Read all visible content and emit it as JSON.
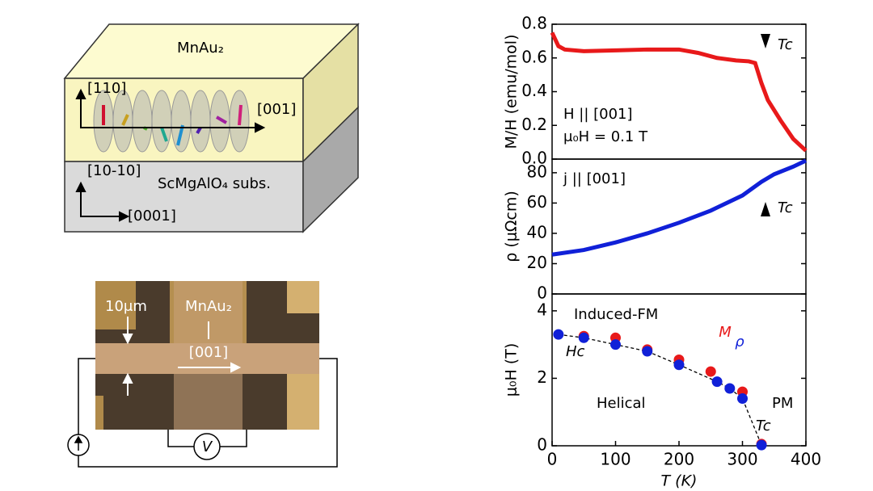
{
  "diagram": {
    "film_label": "MnAu₂",
    "axis_110": "[110]",
    "axis_001": "[001]",
    "axis_1010": "[10-10]",
    "substrate_label": "ScMgAlO₄ subs.",
    "axis_0001": "[0001]",
    "width_label": "10μm",
    "device_label": "MnAu₂",
    "device_axis": "[001]",
    "voltmeter": "V"
  },
  "chart_data": [
    {
      "type": "line",
      "ylabel": "M/H (emu/mol)",
      "annotations": [
        "H || [001]",
        "μ₀H = 0.1 T",
        "Tc"
      ],
      "xlim": [
        0,
        400
      ],
      "ylim": [
        0,
        0.8
      ],
      "yticks": [
        {
          "value": 0,
          "label": "0.0"
        },
        0.2,
        0.4,
        0.6,
        0.8
      ],
      "series": [
        {
          "color": "#e8191a",
          "x": [
            0,
            5,
            10,
            20,
            50,
            100,
            150,
            200,
            230,
            260,
            290,
            310,
            320,
            330,
            340,
            360,
            380,
            400
          ],
          "values": [
            0.75,
            0.71,
            0.67,
            0.65,
            0.64,
            0.645,
            0.65,
            0.65,
            0.63,
            0.6,
            0.585,
            0.58,
            0.57,
            0.45,
            0.35,
            0.23,
            0.12,
            0.05
          ]
        }
      ]
    },
    {
      "type": "line",
      "ylabel": "ρ (μΩcm)",
      "annotations": [
        "j || [001]",
        "Tc"
      ],
      "xlim": [
        0,
        400
      ],
      "ylim": [
        0,
        89
      ],
      "yticks": [
        0,
        20,
        40,
        60,
        80
      ],
      "series": [
        {
          "color": "#1020d8",
          "x": [
            0,
            50,
            100,
            150,
            200,
            250,
            300,
            330,
            350,
            380,
            400
          ],
          "values": [
            26,
            29,
            34,
            40,
            47,
            55,
            65,
            74,
            79,
            84,
            88
          ]
        }
      ]
    },
    {
      "type": "scatter",
      "ylabel": "μ₀H (T)",
      "xlabel": "T (K)",
      "annotations": [
        "Induced-FM",
        "Hc",
        "Helical",
        "PM",
        "Tc"
      ],
      "xlim": [
        0,
        400
      ],
      "ylim": [
        0,
        4.5
      ],
      "xticks": [
        0,
        100,
        200,
        300,
        400
      ],
      "yticks": [
        0,
        2,
        4
      ],
      "series": [
        {
          "name": "M",
          "color": "#e8191a",
          "x": [
            50,
            100,
            150,
            200,
            250,
            300,
            330
          ],
          "values": [
            3.25,
            3.2,
            2.85,
            2.55,
            2.2,
            1.6,
            0.05
          ]
        },
        {
          "name": "ρ",
          "color": "#1020d8",
          "x": [
            10,
            50,
            100,
            150,
            200,
            260,
            280,
            300,
            330
          ],
          "values": [
            3.3,
            3.2,
            3.0,
            2.8,
            2.4,
            1.9,
            1.7,
            1.4,
            0.02
          ]
        }
      ]
    }
  ]
}
